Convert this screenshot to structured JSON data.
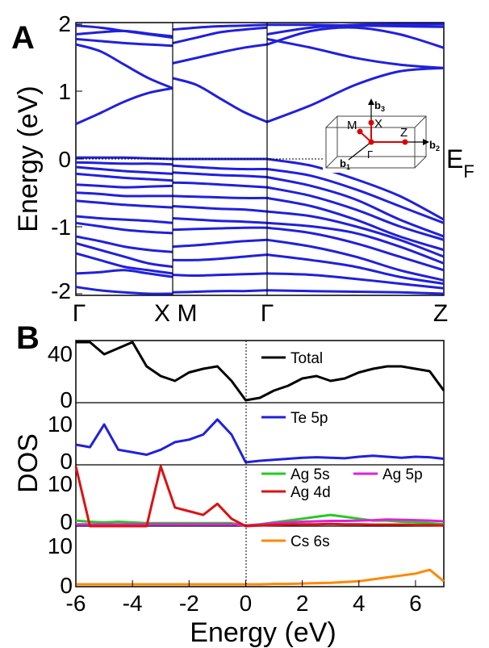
{
  "panelA": {
    "label": "A",
    "chart_data": {
      "type": "line",
      "ylabel": "Energy (eV)",
      "ylim": [
        -2,
        2
      ],
      "yticks": [
        "2",
        "1",
        "0",
        "-1",
        "-2"
      ],
      "kpoint_labels": [
        "Γ",
        "X",
        "M",
        "Γ",
        "Z"
      ],
      "fermi_label": "E",
      "fermi_sub": "F",
      "line_color": "#2020dd",
      "inset_labels": {
        "b3": "b",
        "b3_sub": "3",
        "b2": "b",
        "b2_sub": "2",
        "b1": "b",
        "b1_sub": "1",
        "M": "M",
        "X": "X",
        "Z": "Z",
        "G": "Γ"
      },
      "segments": [
        {
          "name": "Γ-X",
          "bands": [
            [
              1.98,
              1.95,
              1.9,
              1.85,
              1.8
            ],
            [
              1.85,
              1.88,
              1.9,
              1.86,
              1.82
            ],
            [
              1.78,
              1.75,
              1.72,
              1.7,
              1.68
            ],
            [
              1.7,
              1.6,
              1.4,
              1.2,
              1.05
            ],
            [
              0.52,
              0.68,
              0.85,
              0.98,
              1.05
            ],
            [
              0.02,
              0.02,
              0.02,
              0.01,
              0.0
            ],
            [
              -0.05,
              -0.06,
              -0.07,
              -0.07,
              -0.08
            ],
            [
              -0.12,
              -0.15,
              -0.18,
              -0.2,
              -0.22
            ],
            [
              -0.22,
              -0.25,
              -0.28,
              -0.3,
              -0.32
            ],
            [
              -0.38,
              -0.4,
              -0.42,
              -0.41,
              -0.4
            ],
            [
              -0.5,
              -0.52,
              -0.55,
              -0.55,
              -0.55
            ],
            [
              -0.62,
              -0.65,
              -0.68,
              -0.7,
              -0.72
            ],
            [
              -0.85,
              -0.88,
              -0.9,
              -0.92,
              -0.95
            ],
            [
              -0.95,
              -1.0,
              -1.05,
              -1.08,
              -1.1
            ],
            [
              -1.15,
              -1.22,
              -1.3,
              -1.35,
              -1.38
            ],
            [
              -1.25,
              -1.35,
              -1.45,
              -1.55,
              -1.6
            ],
            [
              -1.4,
              -1.5,
              -1.6,
              -1.65,
              -1.7
            ],
            [
              -1.7,
              -1.68,
              -1.65,
              -1.7,
              -1.75
            ],
            [
              -1.9,
              -1.95,
              -1.98,
              -2.0,
              -2.0
            ]
          ]
        },
        {
          "name": "M-Γ",
          "bands": [
            [
              1.92,
              1.95,
              1.97,
              1.98,
              1.99
            ],
            [
              1.72,
              1.8,
              1.88,
              1.92,
              1.95
            ],
            [
              1.42,
              1.5,
              1.58,
              1.65,
              1.7
            ],
            [
              1.2,
              1.1,
              0.9,
              0.7,
              0.55
            ],
            [
              0.0,
              0.0,
              0.0,
              0.0,
              0.0
            ],
            [
              -0.1,
              -0.12,
              -0.14,
              -0.15,
              -0.15
            ],
            [
              -0.2,
              -0.22,
              -0.24,
              -0.25,
              -0.27
            ],
            [
              -0.35,
              -0.36,
              -0.38,
              -0.4,
              -0.42
            ],
            [
              -0.55,
              -0.56,
              -0.57,
              -0.58,
              -0.58
            ],
            [
              -0.7,
              -0.72,
              -0.74,
              -0.75,
              -0.78
            ],
            [
              -0.88,
              -0.9,
              -0.92,
              -0.93,
              -0.95
            ],
            [
              -1.05,
              -1.04,
              -1.03,
              -1.02,
              -1.02
            ],
            [
              -1.3,
              -1.28,
              -1.25,
              -1.22,
              -1.2
            ],
            [
              -1.5,
              -1.5,
              -1.48,
              -1.45,
              -1.42
            ],
            [
              -1.72,
              -1.73,
              -1.72,
              -1.71,
              -1.7
            ],
            [
              -1.98,
              -1.97,
              -1.96,
              -1.96,
              -1.95
            ]
          ]
        },
        {
          "name": "Γ-Z",
          "bands": [
            [
              1.99,
              1.99,
              1.98,
              1.97,
              1.96
            ],
            [
              1.85,
              1.95,
              1.99,
              2.0,
              2.0
            ],
            [
              1.7,
              1.9,
              1.95,
              1.85,
              1.65
            ],
            [
              0.55,
              0.8,
              1.1,
              1.3,
              1.35
            ],
            [
              1.78,
              1.65,
              1.5,
              1.4,
              1.35
            ],
            [
              0.0,
              -0.1,
              -0.3,
              -0.55,
              -0.9
            ],
            [
              -0.15,
              -0.25,
              -0.45,
              -0.7,
              -0.95
            ],
            [
              -0.27,
              -0.4,
              -0.6,
              -0.9,
              -1.15
            ],
            [
              -0.42,
              -0.55,
              -0.75,
              -1.0,
              -1.2
            ],
            [
              -0.58,
              -0.7,
              -0.9,
              -1.15,
              -1.35
            ],
            [
              -0.78,
              -0.85,
              -1.0,
              -1.2,
              -1.45
            ],
            [
              -0.95,
              -1.0,
              -1.1,
              -1.3,
              -1.55
            ],
            [
              -1.02,
              -1.1,
              -1.25,
              -1.45,
              -1.65
            ],
            [
              -1.2,
              -1.3,
              -1.45,
              -1.65,
              -1.8
            ],
            [
              -1.42,
              -1.5,
              -1.6,
              -1.75,
              -1.85
            ],
            [
              -1.7,
              -1.72,
              -1.78,
              -1.85,
              -1.92
            ],
            [
              -1.95,
              -1.96,
              -1.97,
              -1.98,
              -2.0
            ]
          ]
        }
      ]
    }
  },
  "panelB": {
    "label": "B",
    "chart_data": {
      "type": "line",
      "xlabel": "Energy (eV)",
      "ylabel": "DOS",
      "xlim": [
        -6,
        7
      ],
      "xticks": [
        "-6",
        "-4",
        "-2",
        "0",
        "2",
        "4",
        "6"
      ],
      "x": [
        -6.0,
        -5.5,
        -5.0,
        -4.5,
        -4.0,
        -3.5,
        -3.0,
        -2.5,
        -2.0,
        -1.5,
        -1.0,
        -0.5,
        0.0,
        0.5,
        1.0,
        1.5,
        2.0,
        2.5,
        3.0,
        3.5,
        4.0,
        4.5,
        5.0,
        5.5,
        6.0,
        6.5,
        7.0
      ],
      "subplots": [
        {
          "ylim": [
            0,
            50
          ],
          "yticks": [
            "40",
            "0"
          ],
          "series": [
            {
              "name": "Total",
              "color": "#000000",
              "values": [
                50,
                50,
                40,
                45,
                50,
                30,
                22,
                18,
                25,
                28,
                30,
                18,
                2,
                4,
                10,
                14,
                20,
                22,
                18,
                20,
                25,
                28,
                30,
                30,
                28,
                26,
                10
              ]
            }
          ]
        },
        {
          "ylim": [
            0,
            12
          ],
          "yticks": [
            "10",
            "0"
          ],
          "series": [
            {
              "name": "Te 5p",
              "color": "#2020dd",
              "values": [
                4,
                3.5,
                8,
                3,
                2.5,
                2,
                3,
                4.5,
                5,
                6,
                9,
                6,
                0.5,
                0.8,
                1,
                1.2,
                1.4,
                1.5,
                1.4,
                1.3,
                1.6,
                1.8,
                1.6,
                1.4,
                1.6,
                1.5,
                1.2
              ]
            }
          ]
        },
        {
          "ylim": [
            0,
            16
          ],
          "yticks": [
            "10",
            "0"
          ],
          "series": [
            {
              "name": "Ag 5s",
              "color": "#22cc22",
              "values": [
                1.5,
                1.2,
                1,
                1.2,
                1,
                0.8,
                0.8,
                0.8,
                0.8,
                0.8,
                0.8,
                0.8,
                0.2,
                0.5,
                1,
                1.5,
                2,
                2.5,
                3,
                2.5,
                2,
                1.5,
                1.5,
                1.2,
                1,
                0.8,
                0.5
              ]
            },
            {
              "name": "Ag 5p",
              "color": "#dd22dd",
              "values": [
                0.5,
                0.5,
                0.5,
                0.5,
                0.5,
                0.5,
                0.5,
                0.5,
                0.5,
                0.5,
                0.5,
                0.5,
                0.2,
                0.4,
                0.8,
                1,
                1.2,
                1.3,
                1.4,
                1.4,
                1.5,
                1.6,
                1.8,
                1.7,
                1.6,
                1.5,
                1.3
              ]
            },
            {
              "name": "Ag 4d",
              "color": "#dd1111",
              "values": [
                16,
                0,
                0,
                0,
                0,
                0,
                16,
                5,
                4,
                3,
                6,
                2,
                0,
                0.2,
                0.3,
                0.4,
                0.5,
                0.5,
                0.6,
                0.5,
                0.5,
                0.4,
                0.4,
                0.4,
                0.3,
                0.3,
                0.2
              ]
            }
          ]
        },
        {
          "ylim": [
            0,
            15
          ],
          "yticks": [
            "10",
            "0"
          ],
          "series": [
            {
              "name": "Cs 6s",
              "color": "#ff8800",
              "values": [
                0.2,
                0.2,
                0.2,
                0.2,
                0.2,
                0.2,
                0.2,
                0.2,
                0.2,
                0.2,
                0.2,
                0.2,
                0.2,
                0.2,
                0.3,
                0.3,
                0.4,
                0.5,
                0.6,
                0.8,
                1.0,
                1.5,
                2.0,
                2.5,
                3.0,
                4.0,
                1.0
              ]
            }
          ]
        }
      ]
    }
  }
}
